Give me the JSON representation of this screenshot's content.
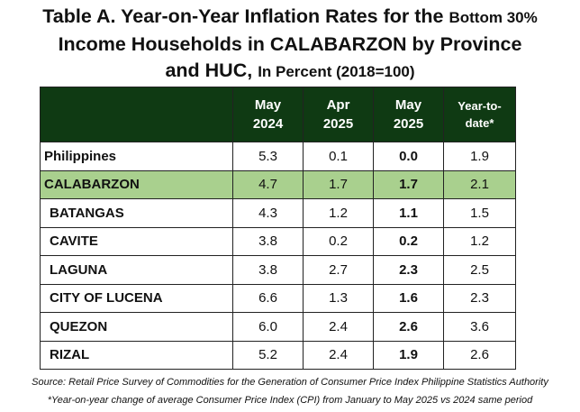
{
  "title": {
    "line1_big": "Table A. Year-on-Year Inflation Rates for the ",
    "line1_small": "Bottom 30%",
    "line2": "Income Households in CALABARZON by Province",
    "line3_big": "and HUC, ",
    "line3_small": "In Percent (2018=100)"
  },
  "table": {
    "headers": [
      {
        "l1": "",
        "l2": ""
      },
      {
        "l1": "May",
        "l2": "2024"
      },
      {
        "l1": "Apr",
        "l2": "2025"
      },
      {
        "l1": "May",
        "l2": "2025"
      },
      {
        "l1": "Year-to-",
        "l2": "date*"
      }
    ],
    "rows": [
      {
        "name": "Philippines",
        "may2024": "5.3",
        "apr2025": "0.1",
        "may2025": "0.0",
        "ytd": "1.9"
      },
      {
        "name": "CALABARZON",
        "may2024": "4.7",
        "apr2025": "1.7",
        "may2025": "1.7",
        "ytd": "2.1"
      },
      {
        "name": "BATANGAS",
        "may2024": "4.3",
        "apr2025": "1.2",
        "may2025": "1.1",
        "ytd": "1.5"
      },
      {
        "name": "CAVITE",
        "may2024": "3.8",
        "apr2025": "0.2",
        "may2025": "0.2",
        "ytd": "1.2"
      },
      {
        "name": "LAGUNA",
        "may2024": "3.8",
        "apr2025": "2.7",
        "may2025": "2.3",
        "ytd": "2.5"
      },
      {
        "name": "CITY OF LUCENA",
        "may2024": "6.6",
        "apr2025": "1.3",
        "may2025": "1.6",
        "ytd": "2.3"
      },
      {
        "name": "QUEZON",
        "may2024": "6.0",
        "apr2025": "2.4",
        "may2025": "2.6",
        "ytd": "3.6"
      },
      {
        "name": "RIZAL",
        "may2024": "5.2",
        "apr2025": "2.4",
        "may2025": "1.9",
        "ytd": "2.6"
      }
    ]
  },
  "colors": {
    "header_bg": "#0f3a13",
    "highlight_row": "#a9d08e"
  },
  "footer": {
    "source": "Source: Retail Price Survey of Commodities for the Generation of Consumer Price Index Philippine Statistics Authority",
    "note": "*Year-on-year change of average Consumer Price Index (CPI) from January to May 2025 vs 2024 same period"
  }
}
